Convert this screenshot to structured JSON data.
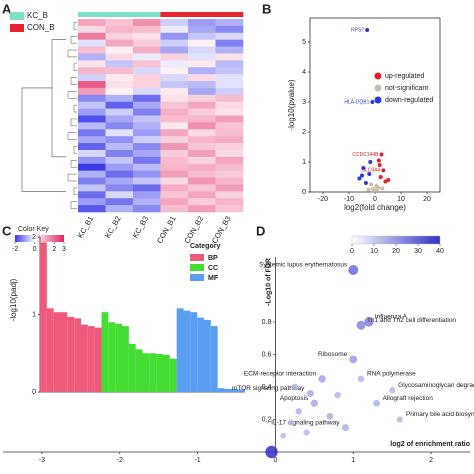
{
  "panels": {
    "a": "A",
    "b": "B",
    "c": "C",
    "d": "D"
  },
  "heatmap": {
    "type": "heatmap",
    "groups": [
      {
        "name": "KC_B",
        "color": "#7fe0c8"
      },
      {
        "name": "CON_B",
        "color": "#e8232f"
      }
    ],
    "columns": [
      "KC_B1",
      "KC_B2",
      "KC_B3",
      "CON_B1",
      "CON_B2",
      "CON_B3"
    ],
    "color_key_title": "Color Key",
    "clim": [
      -2,
      3
    ],
    "cticks": [
      -2,
      0,
      1,
      2,
      3
    ],
    "low_color": "#3b3bea",
    "mid_color": "#ffffff",
    "high_color": "#e3205c",
    "values": [
      [
        1.2,
        0.8,
        1.5,
        -0.5,
        -1,
        -0.8
      ],
      [
        0.5,
        1.0,
        0.9,
        -0.2,
        -0.9,
        -1.2
      ],
      [
        1.8,
        0.6,
        0.4,
        -1.1,
        -0.6,
        -0.4
      ],
      [
        -0.3,
        1.2,
        0.7,
        -0.5,
        0.2,
        -1.3
      ],
      [
        0.9,
        0.2,
        1.1,
        -0.9,
        -0.4,
        -0.8
      ],
      [
        -0.8,
        0.5,
        -0.2,
        0.6,
        -0.3,
        0.4
      ],
      [
        0.4,
        -0.6,
        0.8,
        -0.2,
        0.3,
        -0.7
      ],
      [
        1.0,
        0.9,
        -0.4,
        0.2,
        -0.8,
        -0.6
      ],
      [
        -0.5,
        0.3,
        0.6,
        -0.4,
        0.5,
        -0.3
      ],
      [
        2.2,
        0.4,
        0.6,
        -0.6,
        -0.7,
        -0.3
      ],
      [
        1.3,
        0.2,
        -0.4,
        0.3,
        -0.9,
        -0.5
      ],
      [
        -1.2,
        -0.8,
        -1.5,
        0.4,
        0.6,
        0.9
      ],
      [
        -0.6,
        -1.6,
        -0.9,
        0.8,
        1.2,
        0.5
      ],
      [
        -1.0,
        -0.5,
        -1.3,
        1.1,
        0.7,
        0.4
      ],
      [
        -1.8,
        -0.9,
        -0.6,
        0.9,
        1.0,
        1.3
      ],
      [
        -0.7,
        -1.2,
        -0.8,
        0.3,
        1.5,
        0.8
      ],
      [
        -1.4,
        -0.3,
        -1.0,
        1.2,
        0.5,
        0.9
      ],
      [
        -0.9,
        -1.1,
        -0.5,
        0.6,
        1.0,
        1.1
      ],
      [
        -1.6,
        -0.7,
        -1.2,
        1.4,
        0.8,
        0.6
      ],
      [
        -0.4,
        -1.3,
        -0.9,
        0.7,
        1.3,
        0.5
      ],
      [
        -1.1,
        -0.6,
        -1.4,
        0.9,
        0.6,
        1.2
      ],
      [
        -2.0,
        -1.0,
        -0.7,
        1.0,
        1.1,
        0.9
      ],
      [
        -0.8,
        -1.5,
        -1.1,
        1.3,
        0.9,
        0.7
      ],
      [
        -1.3,
        -0.9,
        -0.6,
        0.5,
        1.4,
        1.0
      ],
      [
        -0.6,
        -1.2,
        -1.5,
        1.1,
        0.8,
        1.3
      ],
      [
        -1.5,
        -0.4,
        -1.0,
        0.8,
        1.2,
        0.6
      ],
      [
        -1.0,
        -1.4,
        -0.8,
        1.2,
        0.7,
        1.0
      ],
      [
        -1.7,
        -0.8,
        -1.2,
        0.9,
        1.3,
        0.8
      ]
    ]
  },
  "chart_data": [
    {
      "type": "scatter",
      "xlabel": "log2(fold change)",
      "ylabel": "-log10(pvalue)",
      "xlim": [
        -25,
        25
      ],
      "xticks": [
        -20,
        -10,
        0,
        10,
        20
      ],
      "ylim": [
        0,
        5.8
      ],
      "yticks": [
        0,
        1,
        2,
        3,
        4,
        5
      ],
      "legend": "right",
      "series": [
        {
          "name": "up-regulated",
          "color": "#e0202a",
          "x": [
            2.5,
            3.2,
            1.8,
            4.0,
            2.2,
            1.5,
            5.1
          ],
          "values": [
            1.25,
            0.72,
            0.9,
            0.35,
            0.5,
            1.05,
            0.4
          ],
          "labels": [
            "CCDC144B",
            "SLC9A4",
            null,
            null,
            null,
            null,
            null
          ]
        },
        {
          "name": "not-significant",
          "color": "#c8c0a8",
          "x": [
            -0.8,
            0.5,
            -0.3,
            1.2,
            -1.5,
            0.9,
            -2.5,
            2.8
          ],
          "values": [
            0.1,
            0.2,
            0.05,
            0.15,
            0.25,
            0.1,
            0.08,
            0.12
          ],
          "labels": [
            null,
            null,
            null,
            null,
            null,
            null,
            null,
            null
          ]
        },
        {
          "name": "down-regulated",
          "color": "#2a3ad8",
          "x": [
            -3,
            -1,
            -4.5,
            -2.2,
            -6,
            -3.5,
            -1.8,
            -5
          ],
          "values": [
            5.4,
            3.0,
            0.8,
            0.6,
            0.45,
            0.3,
            1.0,
            0.55
          ],
          "labels": [
            "RPS7",
            "HLA-DQB1",
            null,
            null,
            null,
            null,
            null,
            null
          ]
        }
      ]
    },
    {
      "type": "bar",
      "ylabel": "-log10(padj)",
      "ylim": [
        0,
        2
      ],
      "yticks": [
        0,
        1,
        2
      ],
      "legend_title": "Category",
      "legend": "upper right",
      "series": [
        {
          "name": "BP",
          "color": "#ef5a7c",
          "values": [
            1.93,
            1.08,
            1.03,
            1.03,
            0.97,
            0.95,
            0.87,
            0.85,
            0.83
          ],
          "categories": [
            null,
            null,
            null,
            null,
            null,
            null,
            null,
            null,
            null
          ]
        },
        {
          "name": "CC",
          "color": "#44dd33",
          "values": [
            1.03,
            0.9,
            0.88,
            0.85,
            0.62,
            0.55,
            0.5,
            0.5,
            0.49,
            0.48,
            0.43
          ],
          "categories": [
            null,
            null,
            null,
            null,
            null,
            null,
            null,
            null,
            null,
            null,
            null
          ]
        },
        {
          "name": "MF",
          "color": "#5b9ff2",
          "values": [
            1.08,
            1.05,
            1.03,
            0.96,
            0.93,
            0.85,
            0.05,
            0.04,
            0.04,
            0.03
          ],
          "categories": [
            null,
            null,
            null,
            null,
            null,
            null,
            null,
            null,
            null,
            null
          ]
        }
      ]
    },
    {
      "type": "bubble",
      "xlabel": "log2 of enrichment ratio",
      "ylabel": "-Log10 of FDR",
      "xlim": [
        -3.5,
        2.5
      ],
      "xticks": [
        -3,
        -2,
        -1,
        0,
        1,
        2
      ],
      "ylim": [
        0,
        1.2
      ],
      "yticks": [
        0.2,
        0.4,
        0.6,
        0.8
      ],
      "clim": [
        0,
        40
      ],
      "cticks": [
        0,
        10,
        20,
        30,
        40
      ],
      "low_color": "#ffffff",
      "high_color": "#3030c8",
      "x": [
        -0.05,
        1.0,
        1.2,
        1.1,
        1.0,
        0.6,
        0.45,
        0.5,
        1.1,
        1.5,
        1.3,
        1.6,
        0.9,
        0.3,
        0.2,
        0.7,
        0.1,
        0.4,
        0.8,
        0.25
      ],
      "values": [
        0,
        1.12,
        0.8,
        0.78,
        0.57,
        0.45,
        0.36,
        0.3,
        0.45,
        0.38,
        0.3,
        0.2,
        0.15,
        0.25,
        0.18,
        0.22,
        0.1,
        0.12,
        0.35,
        0.4
      ],
      "counts": [
        45,
        25,
        20,
        18,
        12,
        10,
        8,
        9,
        6,
        5,
        7,
        5,
        8,
        6,
        5,
        7,
        4,
        5,
        6,
        7
      ],
      "labels": [
        null,
        "Systemic lupus erythematosus",
        "Influenza A",
        "Th1 and Th2 cell differentiation",
        "Ribosome",
        "ECM-receptor interaction",
        "mTOR signaling pathway",
        "Apoptosis",
        "RNA polymerase",
        "Glycosaminoglycan degrad",
        "Allograft rejection",
        "Primary bile acid biosynthesis",
        "IL-17 signaling pathway",
        null,
        null,
        null,
        null,
        null,
        null,
        null
      ]
    }
  ]
}
